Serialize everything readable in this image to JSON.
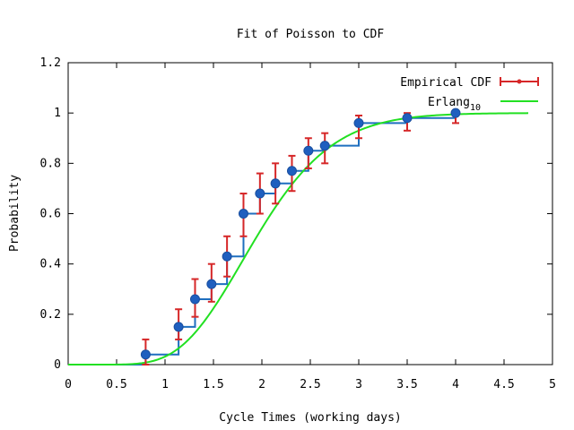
{
  "chart_data": {
    "type": "line",
    "title": "Fit of Poisson to CDF",
    "xlabel": "Cycle Times (working days)",
    "ylabel": "Probability",
    "xlim": [
      0,
      5
    ],
    "ylim": [
      0,
      1.2
    ],
    "xticks": [
      "0",
      "0.5",
      "1",
      "1.5",
      "2",
      "2.5",
      "3",
      "3.5",
      "4",
      "4.5",
      "5"
    ],
    "yticks": [
      "0",
      "0.2",
      "0.4",
      "0.6",
      "0.8",
      "1",
      "1.2"
    ],
    "grid": false,
    "legend_position": "top-right",
    "colors": {
      "step": "#1f6fbf",
      "errorbar": "#d62728",
      "point": "#1f5fbf",
      "fit": "#22e022"
    },
    "series": [
      {
        "name": "Empirical CDF",
        "style": "step with error bars",
        "x": [
          0.8,
          1.14,
          1.31,
          1.48,
          1.64,
          1.81,
          1.98,
          2.14,
          2.31,
          2.48,
          2.65,
          3.0,
          3.5,
          4.0
        ],
        "y": [
          0.04,
          0.15,
          0.26,
          0.32,
          0.43,
          0.6,
          0.68,
          0.72,
          0.77,
          0.85,
          0.87,
          0.96,
          0.98,
          1.0
        ],
        "yerr_low": [
          0.0,
          0.1,
          0.19,
          0.25,
          0.35,
          0.51,
          0.6,
          0.64,
          0.69,
          0.78,
          0.8,
          0.9,
          0.93,
          0.96
        ],
        "yerr_high": [
          0.1,
          0.22,
          0.34,
          0.4,
          0.51,
          0.68,
          0.76,
          0.8,
          0.83,
          0.9,
          0.92,
          0.99,
          1.0,
          1.0
        ]
      },
      {
        "name": "Erlang",
        "name_subscript": "10",
        "style": "line",
        "distribution": {
          "k": 10,
          "rate": 5.0
        },
        "x_range": [
          0,
          4.75
        ]
      }
    ]
  }
}
